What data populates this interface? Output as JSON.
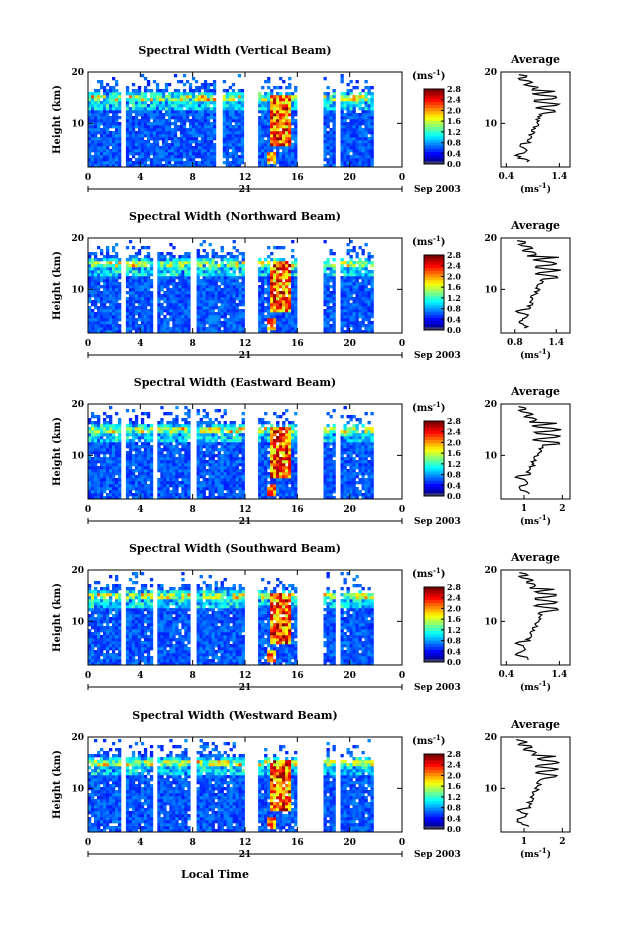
{
  "figure": {
    "xlabel_bottom": "Local Time",
    "date_label": "Sep 2003",
    "day_label": "21",
    "avg_title": "Average",
    "height_label": "Height (km)",
    "colorbar_unit": "(ms",
    "colorbar_unit_exp": "-1",
    "avg_xunit": "(ms",
    "avg_xunit_exp": "-1"
  },
  "chart_data": [
    {
      "type": "heatmap",
      "title": "Spectral Width (Vertical Beam)",
      "ylabel": "Height (km)",
      "xticks": [
        "0",
        "4",
        "8",
        "12",
        "16",
        "20",
        "0"
      ],
      "yticks": [
        "10",
        "20"
      ],
      "xlim": [
        0,
        24
      ],
      "ylim": [
        1.5,
        20
      ],
      "data_hours": [
        [
          0,
          2.4
        ],
        [
          2.9,
          9.6
        ],
        [
          10.3,
          11.9
        ],
        [
          13,
          15.8
        ],
        [
          18,
          18.8
        ],
        [
          19.3,
          21.6
        ]
      ],
      "colorbar_ticks": [
        "2.8",
        "2.4",
        "2.0",
        "1.6",
        "1.2",
        "0.8",
        "0.4",
        "0.0"
      ],
      "colorbar_range": [
        0,
        2.8
      ],
      "avg": {
        "xticks": [
          "0.4",
          "1.4"
        ],
        "xlim": [
          0.3,
          1.6
        ],
        "yticks": [
          "10",
          "20"
        ],
        "ylim": [
          1.5,
          20
        ]
      }
    },
    {
      "type": "heatmap",
      "title": "Spectral Width (Northward Beam)",
      "ylabel": "Height (km)",
      "xticks": [
        "0",
        "4",
        "8",
        "12",
        "16",
        "20",
        "0"
      ],
      "yticks": [
        "10",
        "20"
      ],
      "xlim": [
        0,
        24
      ],
      "ylim": [
        1.5,
        20
      ],
      "data_hours": [
        [
          0,
          2.4
        ],
        [
          2.9,
          4.8
        ],
        [
          5.3,
          7.8
        ],
        [
          8.3,
          11.9
        ],
        [
          13,
          15.8
        ],
        [
          18,
          18.8
        ],
        [
          19.3,
          21.6
        ]
      ],
      "colorbar_ticks": [
        "2.8",
        "2.4",
        "2.0",
        "1.6",
        "1.2",
        "0.8",
        "0.4",
        "0.0"
      ],
      "colorbar_range": [
        0,
        2.8
      ],
      "avg": {
        "xticks": [
          "0.8",
          "1.4"
        ],
        "xlim": [
          0.6,
          1.6
        ],
        "yticks": [
          "10",
          "20"
        ],
        "ylim": [
          1.5,
          20
        ]
      }
    },
    {
      "type": "heatmap",
      "title": "Spectral Width (Eastward Beam)",
      "ylabel": "Height (km)",
      "xticks": [
        "0",
        "4",
        "8",
        "12",
        "16",
        "20",
        "0"
      ],
      "yticks": [
        "10",
        "20"
      ],
      "xlim": [
        0,
        24
      ],
      "ylim": [
        1.5,
        20
      ],
      "data_hours": [
        [
          0,
          2.4
        ],
        [
          2.9,
          4.8
        ],
        [
          5.3,
          7.8
        ],
        [
          8.3,
          11.9
        ],
        [
          13,
          15.8
        ],
        [
          18,
          18.8
        ],
        [
          19.3,
          21.6
        ]
      ],
      "colorbar_ticks": [
        "2.8",
        "2.4",
        "2.0",
        "1.6",
        "1.2",
        "0.8",
        "0.4",
        "0.0"
      ],
      "colorbar_range": [
        0,
        2.8
      ],
      "avg": {
        "xticks": [
          "1",
          "2"
        ],
        "xlim": [
          0.4,
          2.2
        ],
        "yticks": [
          "10",
          "20"
        ],
        "ylim": [
          1.5,
          20
        ]
      }
    },
    {
      "type": "heatmap",
      "title": "Spectral Width (Southward Beam)",
      "ylabel": "Height (km)",
      "xticks": [
        "0",
        "4",
        "8",
        "12",
        "16",
        "20",
        "0"
      ],
      "yticks": [
        "10",
        "20"
      ],
      "xlim": [
        0,
        24
      ],
      "ylim": [
        1.5,
        20
      ],
      "data_hours": [
        [
          0,
          2.4
        ],
        [
          2.9,
          4.8
        ],
        [
          5.3,
          7.8
        ],
        [
          8.3,
          11.9
        ],
        [
          13,
          15.8
        ],
        [
          18,
          18.8
        ],
        [
          19.3,
          21.6
        ]
      ],
      "colorbar_ticks": [
        "2.8",
        "2.4",
        "2.0",
        "1.6",
        "1.2",
        "0.8",
        "0.4",
        "0.0"
      ],
      "colorbar_range": [
        0,
        2.8
      ],
      "avg": {
        "xticks": [
          "0.4",
          "1.4"
        ],
        "xlim": [
          0.3,
          1.6
        ],
        "yticks": [
          "10",
          "20"
        ],
        "ylim": [
          1.5,
          20
        ]
      }
    },
    {
      "type": "heatmap",
      "title": "Spectral Width (Westward Beam)",
      "ylabel": "Height (km)",
      "xticks": [
        "0",
        "4",
        "8",
        "12",
        "16",
        "20",
        "0"
      ],
      "yticks": [
        "10",
        "20"
      ],
      "xlim": [
        0,
        24
      ],
      "ylim": [
        1.5,
        20
      ],
      "data_hours": [
        [
          0,
          2.4
        ],
        [
          2.9,
          4.8
        ],
        [
          5.3,
          7.8
        ],
        [
          8.3,
          11.9
        ],
        [
          13,
          15.8
        ],
        [
          18,
          18.8
        ],
        [
          19.3,
          21.6
        ]
      ],
      "colorbar_ticks": [
        "2.8",
        "2.4",
        "2.0",
        "1.6",
        "1.2",
        "0.8",
        "0.4",
        "0.0"
      ],
      "colorbar_range": [
        0,
        2.8
      ],
      "avg": {
        "xticks": [
          "1",
          "2"
        ],
        "xlim": [
          0.4,
          2.2
        ],
        "yticks": [
          "10",
          "20"
        ],
        "ylim": [
          1.5,
          20
        ]
      }
    }
  ]
}
